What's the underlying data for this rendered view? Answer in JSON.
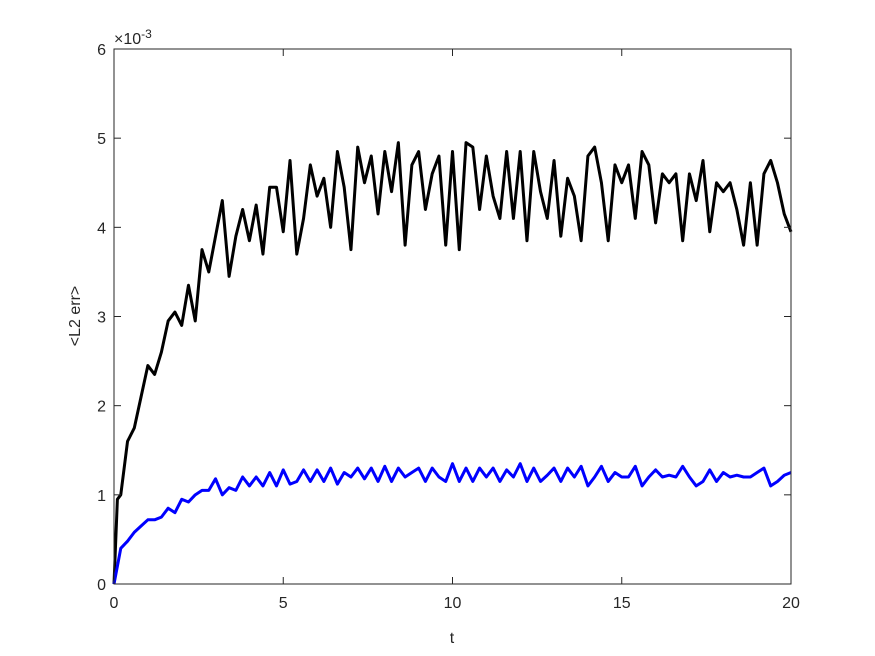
{
  "chart_data": {
    "type": "line",
    "x_label": "t",
    "y_label": "<L2 err>",
    "y_multiplier": "×10",
    "y_exponent": "-3",
    "x": [
      0,
      0.1,
      0.2,
      0.4,
      0.6,
      0.8,
      1.0,
      1.2,
      1.4,
      1.6,
      1.8,
      2.0,
      2.2,
      2.4,
      2.6,
      2.8,
      3.0,
      3.2,
      3.4,
      3.6,
      3.8,
      4.0,
      4.2,
      4.4,
      4.6,
      4.8,
      5.0,
      5.2,
      5.4,
      5.6,
      5.8,
      6.0,
      6.2,
      6.4,
      6.6,
      6.8,
      7.0,
      7.2,
      7.4,
      7.6,
      7.8,
      8.0,
      8.2,
      8.4,
      8.6,
      8.8,
      9.0,
      9.2,
      9.4,
      9.6,
      9.8,
      10.0,
      10.2,
      10.4,
      10.6,
      10.8,
      11.0,
      11.2,
      11.4,
      11.6,
      11.8,
      12.0,
      12.2,
      12.4,
      12.6,
      12.8,
      13.0,
      13.2,
      13.4,
      13.6,
      13.8,
      14.0,
      14.2,
      14.4,
      14.6,
      14.8,
      15.0,
      15.2,
      15.4,
      15.6,
      15.8,
      16.0,
      16.2,
      16.4,
      16.6,
      16.8,
      17.0,
      17.2,
      17.4,
      17.6,
      17.8,
      18.0,
      18.2,
      18.4,
      18.6,
      18.8,
      19.0,
      19.2,
      19.4,
      19.6,
      19.8,
      20.0
    ],
    "series": [
      {
        "color": "#000000",
        "values": [
          0,
          0.95,
          1.0,
          1.6,
          1.75,
          2.1,
          2.45,
          2.35,
          2.6,
          2.95,
          3.05,
          2.9,
          3.35,
          2.95,
          3.75,
          3.5,
          3.9,
          4.3,
          3.45,
          3.9,
          4.2,
          3.85,
          4.25,
          3.7,
          4.45,
          4.45,
          3.95,
          4.75,
          3.7,
          4.1,
          4.7,
          4.35,
          4.55,
          4.0,
          4.85,
          4.45,
          3.75,
          4.9,
          4.5,
          4.8,
          4.15,
          4.85,
          4.4,
          4.95,
          3.8,
          4.7,
          4.85,
          4.2,
          4.6,
          4.8,
          3.8,
          4.85,
          3.75,
          4.95,
          4.9,
          4.2,
          4.8,
          4.35,
          4.1,
          4.85,
          4.1,
          4.85,
          3.85,
          4.85,
          4.4,
          4.1,
          4.75,
          3.9,
          4.55,
          4.35,
          3.85,
          4.8,
          4.9,
          4.5,
          3.85,
          4.7,
          4.5,
          4.7,
          4.1,
          4.85,
          4.7,
          4.05,
          4.6,
          4.5,
          4.6,
          3.85,
          4.6,
          4.3,
          4.75,
          3.95,
          4.5,
          4.4,
          4.5,
          4.2,
          3.8,
          4.5,
          3.8,
          4.6,
          4.75,
          4.5,
          4.15,
          3.95
        ]
      },
      {
        "color": "#0000ff",
        "values": [
          0,
          0.2,
          0.4,
          0.48,
          0.58,
          0.65,
          0.72,
          0.72,
          0.75,
          0.85,
          0.8,
          0.95,
          0.92,
          1.0,
          1.05,
          1.05,
          1.18,
          1.0,
          1.08,
          1.05,
          1.2,
          1.1,
          1.2,
          1.1,
          1.25,
          1.1,
          1.28,
          1.12,
          1.15,
          1.28,
          1.15,
          1.28,
          1.15,
          1.3,
          1.12,
          1.25,
          1.2,
          1.3,
          1.18,
          1.3,
          1.15,
          1.32,
          1.15,
          1.3,
          1.2,
          1.25,
          1.3,
          1.15,
          1.3,
          1.2,
          1.15,
          1.35,
          1.15,
          1.3,
          1.15,
          1.3,
          1.2,
          1.3,
          1.15,
          1.28,
          1.2,
          1.35,
          1.15,
          1.3,
          1.15,
          1.22,
          1.3,
          1.15,
          1.3,
          1.2,
          1.32,
          1.1,
          1.2,
          1.32,
          1.15,
          1.25,
          1.2,
          1.2,
          1.32,
          1.1,
          1.2,
          1.28,
          1.2,
          1.22,
          1.2,
          1.32,
          1.2,
          1.1,
          1.15,
          1.28,
          1.15,
          1.25,
          1.2,
          1.22,
          1.2,
          1.2,
          1.25,
          1.3,
          1.1,
          1.15,
          1.22,
          1.25
        ]
      }
    ],
    "xlim": [
      0,
      20
    ],
    "xticks": [
      0,
      5,
      10,
      15,
      20
    ],
    "ylim": [
      0,
      6
    ],
    "yticks": [
      0,
      1,
      2,
      3,
      4,
      5,
      6
    ]
  }
}
